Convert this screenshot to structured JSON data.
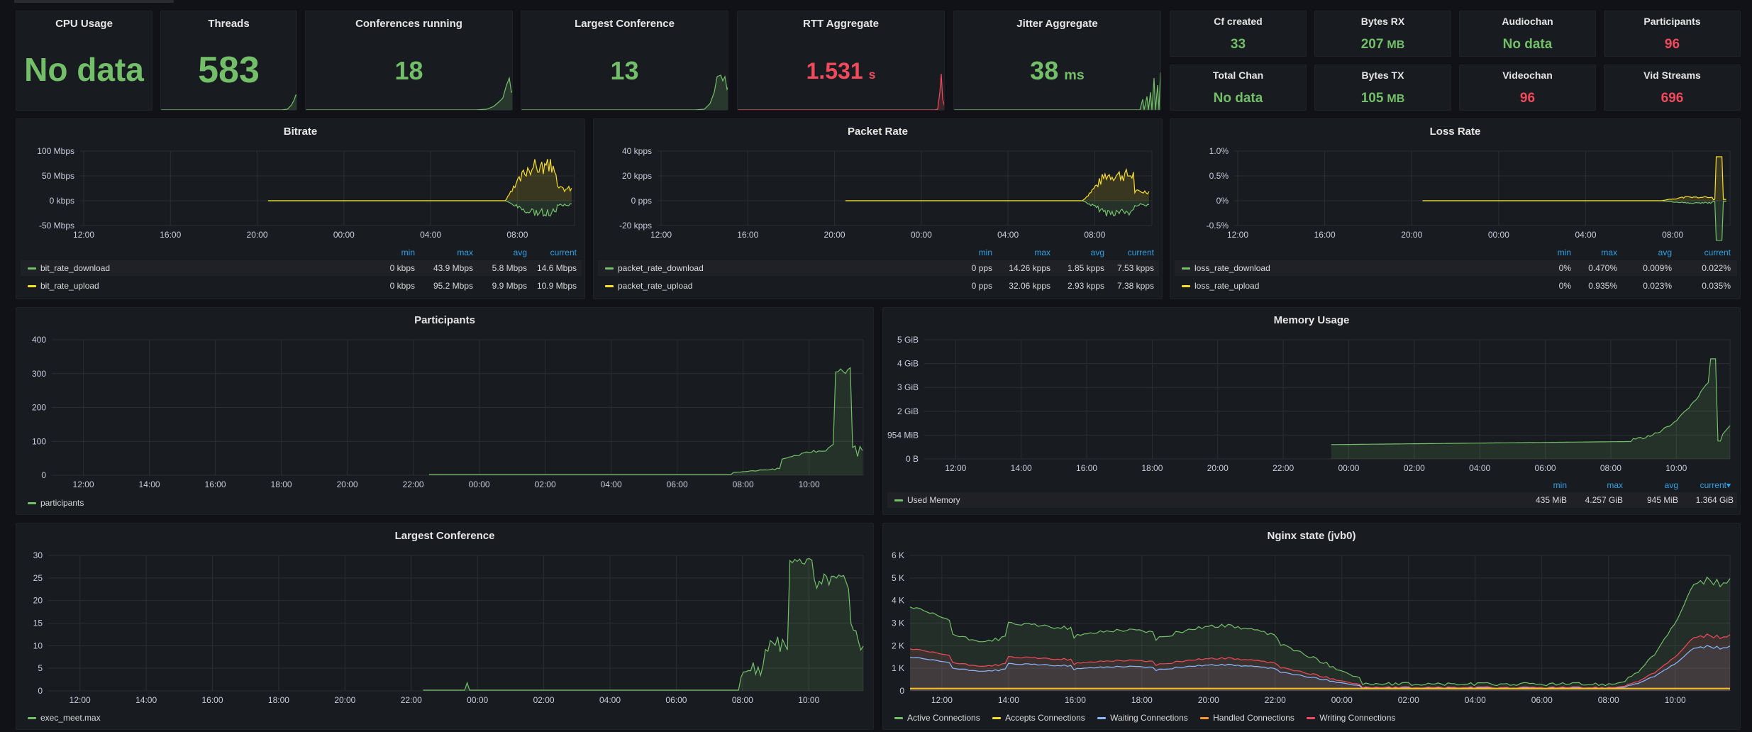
{
  "colors": {
    "green": "#73bf69",
    "yellow": "#fade2a",
    "blue": "#8ab8ff",
    "orange": "#ff9830",
    "red": "#f2495c",
    "grid": "#2c2e33"
  },
  "stats": {
    "cpu_usage": {
      "title": "CPU Usage",
      "value": "No data"
    },
    "threads": {
      "title": "Threads",
      "value": "583"
    },
    "conferences_running": {
      "title": "Conferences running",
      "value": "18"
    },
    "largest_conference": {
      "title": "Largest Conference",
      "value": "13"
    },
    "rtt_aggregate": {
      "title": "RTT Aggregate",
      "value": "1.531",
      "unit": "s"
    },
    "jitter_aggregate": {
      "title": "Jitter Aggregate",
      "value": "38",
      "unit": "ms"
    },
    "cf_created": {
      "title": "Cf created",
      "value": "33"
    },
    "bytes_rx": {
      "title": "Bytes RX",
      "value": "207",
      "unit": "MB"
    },
    "audiochan": {
      "title": "Audiochan",
      "value": "No data"
    },
    "participants": {
      "title": "Participants",
      "value": "96"
    },
    "total_chan": {
      "title": "Total Chan",
      "value": "No data"
    },
    "bytes_tx": {
      "title": "Bytes TX",
      "value": "105",
      "unit": "MB"
    },
    "videochan": {
      "title": "Videochan",
      "value": "96"
    },
    "vid_streams": {
      "title": "Vid Streams",
      "value": "696"
    }
  },
  "graphs": {
    "bitrate": {
      "title": "Bitrate",
      "y_ticks": [
        "100 Mbps",
        "50 Mbps",
        "0 kbps",
        "-50 Mbps"
      ],
      "x_ticks": [
        "12:00",
        "16:00",
        "20:00",
        "00:00",
        "04:00",
        "08:00"
      ],
      "legend_headers": [
        "min",
        "max",
        "avg",
        "current"
      ],
      "legend": [
        {
          "name": "bit_rate_download",
          "min": "0 kbps",
          "max": "43.9 Mbps",
          "avg": "5.8 Mbps",
          "current": "14.6 Mbps"
        },
        {
          "name": "bit_rate_upload",
          "min": "0 kbps",
          "max": "95.2 Mbps",
          "avg": "9.9 Mbps",
          "current": "10.9 Mbps"
        }
      ]
    },
    "packet_rate": {
      "title": "Packet Rate",
      "y_ticks": [
        "40 kpps",
        "20 kpps",
        "0 pps",
        "-20 kpps"
      ],
      "x_ticks": [
        "12:00",
        "16:00",
        "20:00",
        "00:00",
        "04:00",
        "08:00"
      ],
      "legend_headers": [
        "min",
        "max",
        "avg",
        "current"
      ],
      "legend": [
        {
          "name": "packet_rate_download",
          "min": "0 pps",
          "max": "14.26 kpps",
          "avg": "1.85 kpps",
          "current": "7.53 kpps"
        },
        {
          "name": "packet_rate_upload",
          "min": "0 pps",
          "max": "32.06 kpps",
          "avg": "2.93 kpps",
          "current": "7.38 kpps"
        }
      ]
    },
    "loss_rate": {
      "title": "Loss Rate",
      "y_ticks": [
        "1.0%",
        "0.5%",
        "0%",
        "-0.5%"
      ],
      "x_ticks": [
        "12:00",
        "16:00",
        "20:00",
        "00:00",
        "04:00",
        "08:00"
      ],
      "legend_headers": [
        "min",
        "max",
        "avg",
        "current"
      ],
      "legend": [
        {
          "name": "loss_rate_download",
          "min": "0%",
          "max": "0.470%",
          "avg": "0.009%",
          "current": "0.022%"
        },
        {
          "name": "loss_rate_upload",
          "min": "0%",
          "max": "0.935%",
          "avg": "0.023%",
          "current": "0.035%"
        }
      ]
    },
    "participants": {
      "title": "Participants",
      "y_ticks": [
        "400",
        "300",
        "200",
        "100",
        "0"
      ],
      "x_ticks": [
        "12:00",
        "14:00",
        "16:00",
        "18:00",
        "20:00",
        "22:00",
        "00:00",
        "02:00",
        "04:00",
        "06:00",
        "08:00",
        "10:00"
      ],
      "legend": [
        {
          "name": "participants"
        }
      ]
    },
    "memory_usage": {
      "title": "Memory Usage",
      "y_ticks": [
        "5 GiB",
        "4 GiB",
        "3 GiB",
        "2 GiB",
        "954 MiB",
        "0 B"
      ],
      "x_ticks": [
        "12:00",
        "14:00",
        "16:00",
        "18:00",
        "20:00",
        "22:00",
        "00:00",
        "02:00",
        "04:00",
        "06:00",
        "08:00",
        "10:00"
      ],
      "legend_headers": [
        "min",
        "max",
        "avg",
        "current▾"
      ],
      "legend": [
        {
          "name": "Used Memory",
          "min": "435 MiB",
          "max": "4.257 GiB",
          "avg": "945 MiB",
          "current": "1.364 GiB"
        }
      ]
    },
    "largest_conference": {
      "title": "Largest Conference",
      "y_ticks": [
        "30",
        "25",
        "20",
        "15",
        "10",
        "5",
        "0"
      ],
      "x_ticks": [
        "12:00",
        "14:00",
        "16:00",
        "18:00",
        "20:00",
        "22:00",
        "00:00",
        "02:00",
        "04:00",
        "06:00",
        "08:00",
        "10:00"
      ],
      "legend": [
        {
          "name": "exec_meet.max"
        }
      ]
    },
    "nginx_state": {
      "title": "Nginx state (jvb0)",
      "y_ticks": [
        "6 K",
        "5 K",
        "4 K",
        "3 K",
        "2 K",
        "1 K",
        "0"
      ],
      "x_ticks": [
        "12:00",
        "14:00",
        "16:00",
        "18:00",
        "20:00",
        "22:00",
        "00:00",
        "02:00",
        "04:00",
        "06:00",
        "08:00",
        "10:00"
      ],
      "legend": [
        {
          "name": "Active Connections",
          "color": "#73bf69"
        },
        {
          "name": "Accepts Connections",
          "color": "#fade2a"
        },
        {
          "name": "Waiting Connections",
          "color": "#8ab8ff"
        },
        {
          "name": "Handled Connections",
          "color": "#ff9830"
        },
        {
          "name": "Writing Connections",
          "color": "#f2495c"
        }
      ]
    }
  }
}
